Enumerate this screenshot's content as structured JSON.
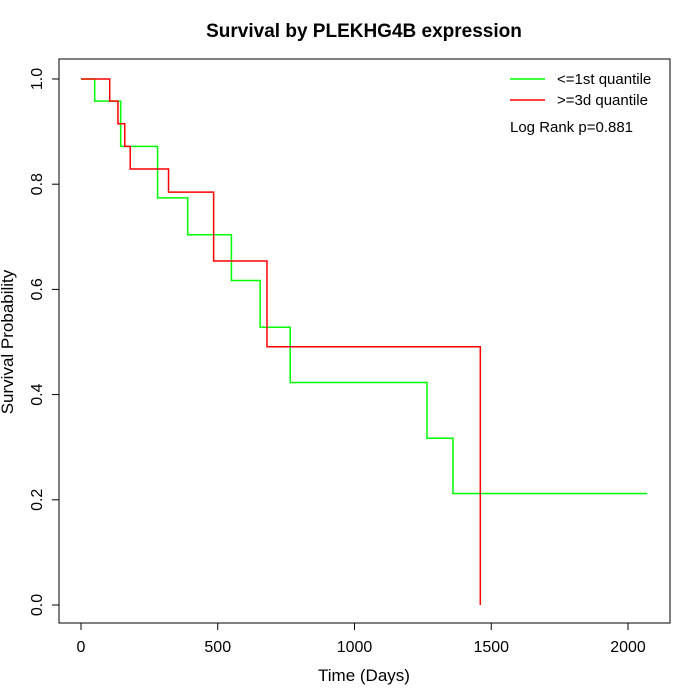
{
  "chart_data": {
    "type": "line",
    "title": "Survival by PLEKHG4B expression",
    "xlabel": "Time (Days)",
    "ylabel": "Survival Probability",
    "xlim": [
      0,
      2070
    ],
    "ylim": [
      0,
      1
    ],
    "x_ticks": [
      0,
      500,
      1000,
      1500,
      2000
    ],
    "y_ticks": [
      0.0,
      0.2,
      0.4,
      0.6,
      0.8,
      1.0
    ],
    "x_tick_labels": [
      "0",
      "500",
      "1000",
      "1500",
      "2000"
    ],
    "y_tick_labels": [
      "0.0",
      "0.2",
      "0.4",
      "0.6",
      "0.8",
      "1.0"
    ],
    "annotation": "Log Rank p=0.881",
    "legend_position": "top-right",
    "series": [
      {
        "name": "<=1st quantile",
        "color": "#00ff00",
        "step": true,
        "x": [
          0,
          50,
          125,
          145,
          280,
          390,
          550,
          655,
          765,
          1265,
          1360,
          2070
        ],
        "y": [
          1.0,
          0.958,
          0.958,
          0.872,
          0.774,
          0.704,
          0.617,
          0.528,
          0.423,
          0.317,
          0.212,
          0.212
        ]
      },
      {
        "name": ">=3d quantile",
        "color": "#ff0000",
        "step": true,
        "x": [
          0,
          105,
          135,
          160,
          180,
          320,
          485,
          680,
          1460,
          1460
        ],
        "y": [
          1.0,
          0.958,
          0.915,
          0.872,
          0.829,
          0.785,
          0.654,
          0.491,
          0.491,
          0.0
        ]
      }
    ]
  }
}
